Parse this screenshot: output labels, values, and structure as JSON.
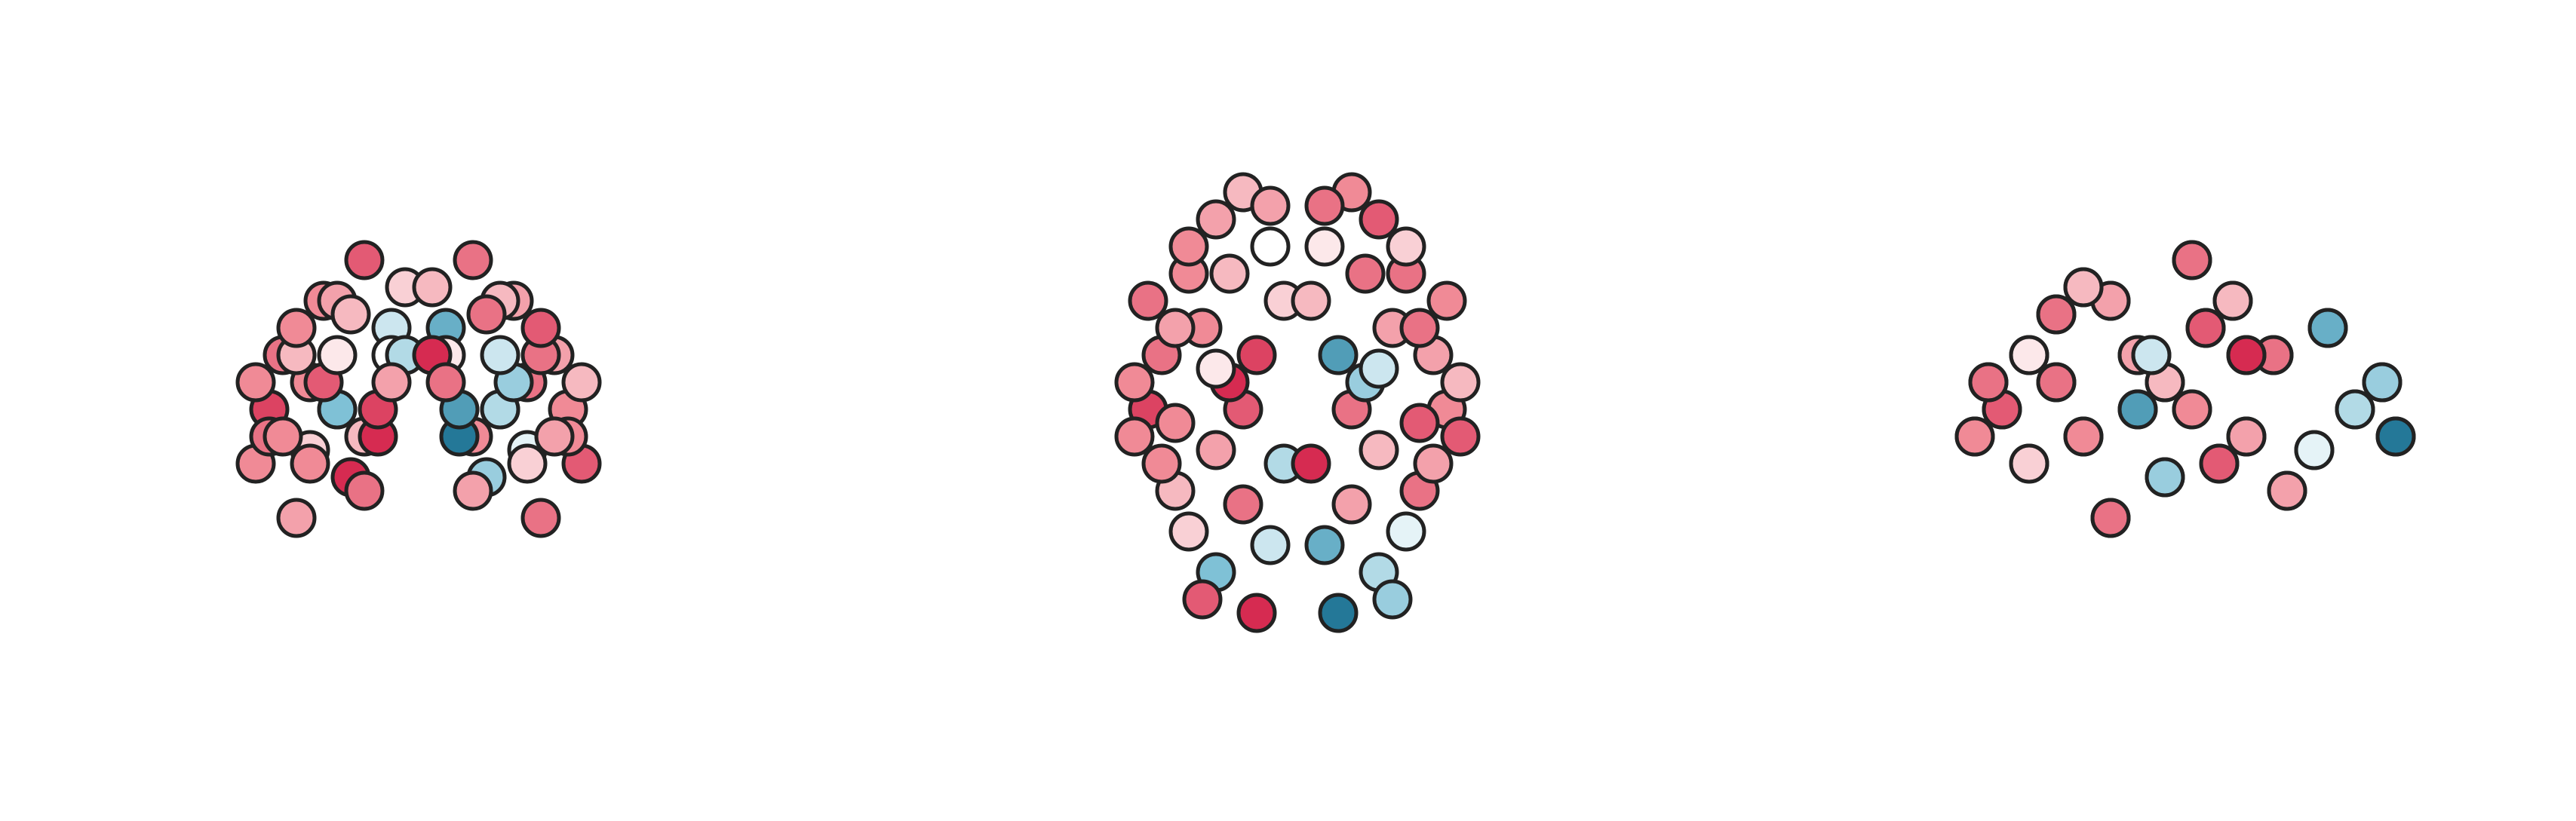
{
  "chart_data": {
    "type": "scatter",
    "nodes": {
      "x": [
        -40,
        40,
        -30,
        30,
        -20,
        20,
        -50,
        50,
        -55,
        55,
        -45,
        45,
        -30,
        30,
        -15,
        15,
        -10,
        10,
        -35,
        35,
        -20,
        20,
        -5,
        5,
        -60,
        60,
        -45,
        45,
        -25,
        25,
        -10,
        10,
        -5,
        5,
        -40,
        40,
        -55,
        55,
        -30,
        30,
        -15,
        15,
        -50,
        50,
        -25,
        25,
        -35,
        35,
        -60,
        60,
        -20,
        20,
        -40,
        40,
        -10,
        10,
        -30,
        30,
        -45,
        45
      ],
      "y": [
        30,
        30,
        50,
        50,
        60,
        60,
        0,
        0,
        -20,
        -20,
        -50,
        -50,
        -80,
        -80,
        -95,
        -95,
        -70,
        -70,
        10,
        10,
        -20,
        -20,
        20,
        20,
        -30,
        -30,
        10,
        10,
        -10,
        -10,
        40,
        40,
        -40,
        -40,
        -65,
        -65,
        20,
        20,
        -35,
        -35,
        0,
        0,
        -40,
        -40,
        30,
        30,
        -90,
        -90,
        -10,
        -10,
        -55,
        -55,
        40,
        40,
        55,
        55,
        -5,
        -5,
        -25,
        -25
      ],
      "z": [
        20,
        20,
        10,
        10,
        0,
        0,
        30,
        30,
        10,
        10,
        30,
        30,
        10,
        10,
        0,
        0,
        40,
        40,
        50,
        50,
        65,
        65,
        55,
        55,
        -10,
        -10,
        -30,
        -30,
        -15,
        -15,
        30,
        30,
        30,
        30,
        -5,
        -5,
        0,
        0,
        50,
        50,
        10,
        10,
        0,
        0,
        45,
        45,
        20,
        20,
        20,
        20,
        -20,
        -20,
        -10,
        -10,
        20,
        20,
        30,
        30,
        40,
        40
      ],
      "values": [
        0.5,
        0.6,
        0.4,
        0.7,
        0.3,
        0.5,
        0.6,
        0.4,
        0.8,
        0.5,
        0.3,
        0.6,
        -0.5,
        -0.3,
        0.9,
        -0.9,
        -0.2,
        -0.6,
        0.5,
        0.4,
        0.7,
        0.6,
        0.2,
        0.3,
        0.5,
        0.7,
        0.4,
        0.6,
        0.9,
        -0.4,
        0,
        0.1,
        -0.3,
        0.9,
        0.2,
        -0.1,
        0.6,
        0.5,
        0.4,
        0.3,
        0.8,
        -0.7,
        0.5,
        0.4,
        0.3,
        0.6,
        0.7,
        -0.4,
        0.5,
        0.3,
        0.6,
        0.4,
        0.5,
        0.2,
        0.4,
        0.6,
        0.1,
        -0.2,
        0.5,
        0.7
      ]
    },
    "vlim": [
      -1,
      1
    ],
    "cmap": [
      "#0d6689",
      "#7fc1d6",
      "#ffffff",
      "#f08a96",
      "#cf1340"
    ],
    "views": [
      {
        "h": "x",
        "v": "z",
        "xlim": [
          -75,
          75
        ],
        "ylim": [
          -55,
          80
        ]
      },
      {
        "h": "x",
        "v": "y",
        "xlim": [
          -75,
          75
        ],
        "ylim": [
          -110,
          75
        ]
      },
      {
        "h": "y",
        "v": "z",
        "xlim": [
          75,
          -110
        ],
        "ylim": [
          -55,
          80
        ]
      }
    ]
  }
}
